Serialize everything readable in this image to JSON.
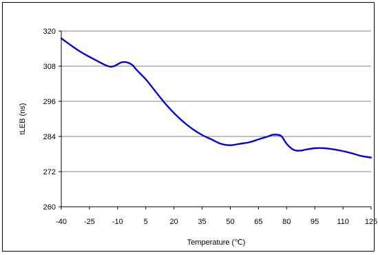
{
  "chart_data": {
    "type": "line",
    "title": "",
    "xlabel": "Temperature (℃)",
    "ylabel": "tLEB (ns)",
    "xlim": [
      -40,
      125
    ],
    "ylim": [
      260,
      320
    ],
    "x_ticks": [
      -40,
      -25,
      -10,
      5,
      20,
      35,
      50,
      65,
      80,
      95,
      110,
      125
    ],
    "y_ticks": [
      260,
      272,
      284,
      296,
      308,
      320
    ],
    "grid": "horizontal",
    "line_color": "#0000dd",
    "series": [
      {
        "x": [
          -40,
          -30,
          -20,
          -15,
          -12,
          -8,
          -5,
          -2,
          0,
          5,
          10,
          15,
          20,
          25,
          30,
          35,
          40,
          45,
          50,
          55,
          60,
          65,
          70,
          73,
          77,
          80,
          83,
          85,
          88,
          90,
          95,
          100,
          105,
          110,
          115,
          120,
          125
        ],
        "values": [
          317.5,
          313,
          309.5,
          308,
          308,
          309.3,
          309.3,
          308.3,
          306.8,
          303.5,
          299.5,
          295.5,
          292,
          289,
          286.5,
          284.5,
          283,
          281.5,
          281,
          281.5,
          282,
          283,
          284,
          284.6,
          284.2,
          281.5,
          279.7,
          279.2,
          279.2,
          279.5,
          280,
          280,
          279.6,
          279,
          278.2,
          277.3,
          276.8
        ]
      }
    ]
  }
}
